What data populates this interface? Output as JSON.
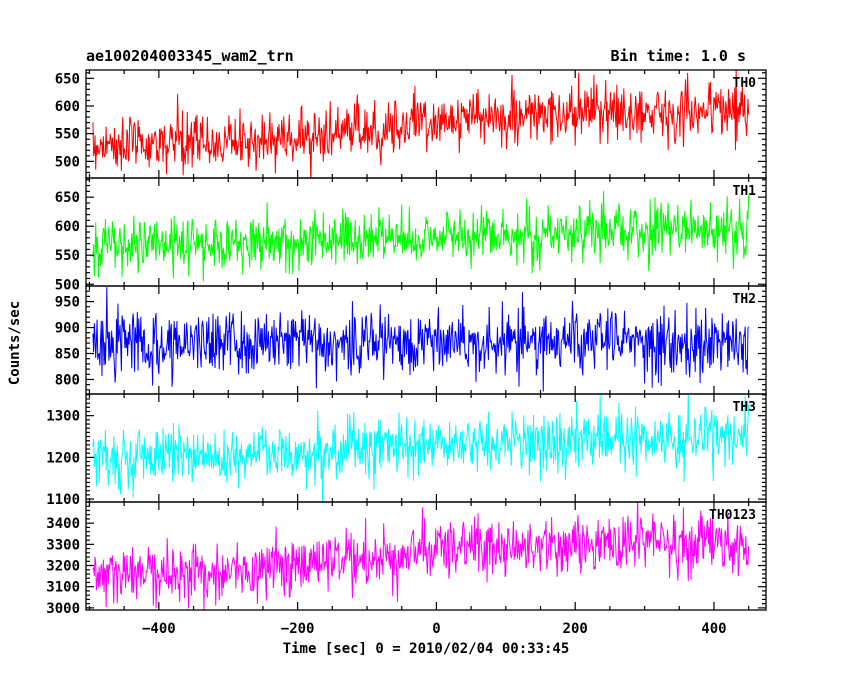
{
  "header": {
    "title": "ae100204003345_wam2_trn",
    "bin_time": "Bin time: 1.0 s"
  },
  "chart_data": {
    "type": "line",
    "xlabel": "Time [sec] 0 = 2010/02/04 00:33:45",
    "ylabel": "Counts/sec",
    "xlim": [
      -505,
      475
    ],
    "x_range_data": [
      -495,
      450
    ],
    "x_ticks": [
      -400,
      -200,
      0,
      200,
      400
    ],
    "x_tick_labels": [
      "−400",
      "−200",
      "0",
      "200",
      "400"
    ],
    "panels": [
      {
        "name": "TH0",
        "color": "#ff0000",
        "ylim": [
          470,
          665
        ],
        "y_ticks": [
          500,
          550,
          600,
          650
        ],
        "y_tick_labels": [
          "500",
          "550",
          "600",
          "650"
        ],
        "trend": [
          [
            -495,
            530
          ],
          [
            -300,
            535
          ],
          [
            -150,
            548
          ],
          [
            0,
            575
          ],
          [
            200,
            585
          ],
          [
            450,
            595
          ]
        ],
        "noise_sd": 25
      },
      {
        "name": "TH1",
        "color": "#00ff00",
        "ylim": [
          497,
          683
        ],
        "y_ticks": [
          500,
          550,
          600,
          650
        ],
        "y_tick_labels": [
          "500",
          "550",
          "600",
          "650"
        ],
        "trend": [
          [
            -495,
            565
          ],
          [
            -200,
            575
          ],
          [
            0,
            582
          ],
          [
            200,
            590
          ],
          [
            450,
            595
          ]
        ],
        "noise_sd": 24
      },
      {
        "name": "TH2",
        "color": "#0000ff",
        "ylim": [
          772,
          980
        ],
        "y_ticks": [
          800,
          850,
          900,
          950
        ],
        "y_tick_labels": [
          "800",
          "850",
          "900",
          "950"
        ],
        "trend": [
          [
            -495,
            870
          ],
          [
            0,
            875
          ],
          [
            450,
            870
          ]
        ],
        "noise_sd": 32
      },
      {
        "name": "TH3",
        "color": "#00ffff",
        "ylim": [
          1093,
          1352
        ],
        "y_ticks": [
          1100,
          1200,
          1300
        ],
        "y_tick_labels": [
          "1100",
          "1200",
          "1300"
        ],
        "trend": [
          [
            -495,
            1200
          ],
          [
            -200,
            1212
          ],
          [
            0,
            1228
          ],
          [
            200,
            1240
          ],
          [
            450,
            1252
          ]
        ],
        "noise_sd": 36
      },
      {
        "name": "TH0123",
        "color": "#ff00ff",
        "ylim": [
          2990,
          3500
        ],
        "y_ticks": [
          3000,
          3100,
          3200,
          3300,
          3400
        ],
        "y_tick_labels": [
          "3000",
          "3100",
          "3200",
          "3300",
          "3400"
        ],
        "trend": [
          [
            -495,
            3160
          ],
          [
            -300,
            3170
          ],
          [
            -100,
            3220
          ],
          [
            0,
            3280
          ],
          [
            200,
            3300
          ],
          [
            450,
            3310
          ]
        ],
        "noise_sd": 70
      }
    ]
  }
}
